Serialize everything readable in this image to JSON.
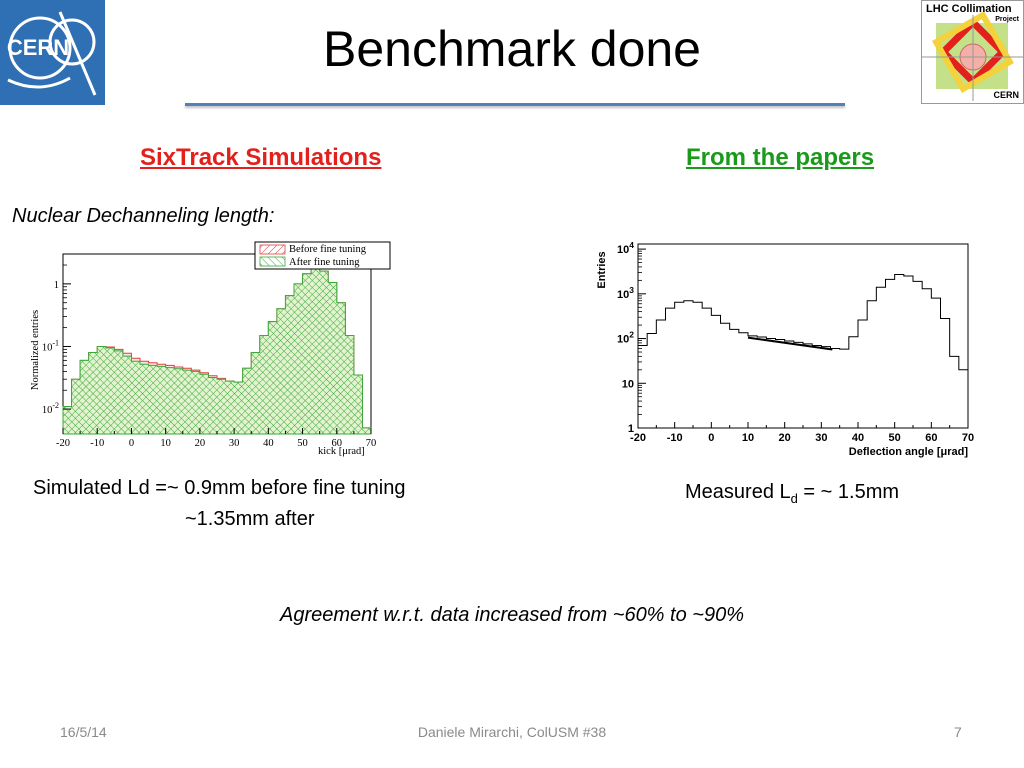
{
  "slide": {
    "title": "Benchmark done",
    "left_heading": "SixTrack Simulations",
    "right_heading": "From the papers",
    "nuclear_label": "Nuclear Dechanneling length:",
    "sim_text_line1": "Simulated Ld =~ 0.9mm before fine tuning",
    "sim_text_line2": "~1.35mm after",
    "meas_text_prefix": "Measured L",
    "meas_text_sub": "d",
    "meas_text_suffix": " = ~ 1.5mm",
    "agreement": "Agreement w.r.t. data increased from ~60% to ~90%",
    "colors": {
      "accent_rule": "#4f81bd",
      "left_heading": "#e3201b",
      "right_heading": "#1a9a1a"
    }
  },
  "logos": {
    "cern_text": "CERN",
    "lhc_title": "LHC Collimation",
    "lhc_project": "Project",
    "lhc_cern": "CERN"
  },
  "footer": {
    "date": "16/5/14",
    "center": "Daniele Mirarchi, ColUSM #38",
    "page": "7"
  },
  "chart_data": [
    {
      "type": "area",
      "xlabel": "kick [μrad]",
      "ylabel": "Normalized entries",
      "xlim": [
        -20,
        70
      ],
      "ylog": true,
      "ylim": [
        0.004,
        3
      ],
      "xticks": [
        "-20",
        "-10",
        "0",
        "10",
        "20",
        "30",
        "40",
        "50",
        "60",
        "70"
      ],
      "yticks": [
        {
          "base": "1",
          "exp": ""
        },
        {
          "base": "10",
          "exp": "-1"
        },
        {
          "base": "10",
          "exp": "-2"
        }
      ],
      "legend": {
        "placement": "top-right"
      },
      "bin_width": 2.5,
      "x": [
        -20,
        -17.5,
        -15,
        -12.5,
        -10,
        -7.5,
        -5,
        -2.5,
        0,
        2.5,
        5,
        7.5,
        10,
        12.5,
        15,
        17.5,
        20,
        22.5,
        25,
        27.5,
        30,
        32.5,
        35,
        37.5,
        40,
        42.5,
        45,
        47.5,
        50,
        52.5,
        55,
        57.5,
        60,
        62.5,
        65,
        67.5
      ],
      "series": [
        {
          "name": "Before fine tuning",
          "color": "#e04040",
          "values": [
            0.011,
            0.03,
            0.06,
            0.08,
            0.1,
            0.098,
            0.09,
            0.078,
            0.065,
            0.058,
            0.055,
            0.052,
            0.05,
            0.047,
            0.045,
            0.042,
            0.038,
            0.034,
            0.031,
            0.028,
            0.027,
            0.045,
            0.08,
            0.15,
            0.25,
            0.4,
            0.65,
            1.0,
            1.45,
            1.8,
            1.6,
            1.05,
            0.5,
            0.15,
            0.035,
            0.005
          ]
        },
        {
          "name": "After fine tuning",
          "color": "#3aaa3a",
          "values": [
            0.011,
            0.03,
            0.06,
            0.08,
            0.1,
            0.095,
            0.085,
            0.07,
            0.058,
            0.052,
            0.05,
            0.048,
            0.046,
            0.044,
            0.042,
            0.04,
            0.036,
            0.032,
            0.03,
            0.028,
            0.027,
            0.045,
            0.08,
            0.15,
            0.25,
            0.4,
            0.65,
            1.0,
            1.45,
            1.8,
            1.6,
            1.05,
            0.5,
            0.15,
            0.035,
            0.005
          ]
        }
      ]
    },
    {
      "type": "line",
      "xlabel": "Deflection angle  [μrad]",
      "ylabel": "Entries",
      "xlim": [
        -20,
        70
      ],
      "ylog": true,
      "ylim": [
        1,
        13000
      ],
      "xticks": [
        "-20",
        "-10",
        "0",
        "10",
        "20",
        "30",
        "40",
        "50",
        "60",
        "70"
      ],
      "yticks": [
        {
          "base": "1",
          "exp": ""
        },
        {
          "base": "10",
          "exp": ""
        },
        {
          "base": "10",
          "exp": "2"
        },
        {
          "base": "10",
          "exp": "3"
        },
        {
          "base": "10",
          "exp": "4"
        }
      ],
      "bin_width": 2.5,
      "x": [
        -20,
        -17.5,
        -15,
        -12.5,
        -10,
        -7.5,
        -5,
        -2.5,
        0,
        2.5,
        5,
        7.5,
        10,
        12.5,
        15,
        17.5,
        20,
        22.5,
        25,
        27.5,
        30,
        32.5,
        35,
        37.5,
        40,
        42.5,
        45,
        47.5,
        50,
        52.5,
        55,
        57.5,
        60,
        62.5,
        65,
        67.5
      ],
      "series": [
        {
          "name": "",
          "color": "#000000",
          "values": [
            70,
            130,
            260,
            480,
            650,
            700,
            650,
            480,
            330,
            220,
            160,
            135,
            115,
            108,
            100,
            95,
            88,
            82,
            76,
            70,
            66,
            60,
            58,
            110,
            260,
            700,
            1400,
            2100,
            2700,
            2500,
            1900,
            1300,
            800,
            280,
            40,
            20
          ]
        }
      ],
      "fit": {
        "x": [
          10,
          33
        ],
        "y": [
          105,
          57
        ]
      }
    }
  ]
}
